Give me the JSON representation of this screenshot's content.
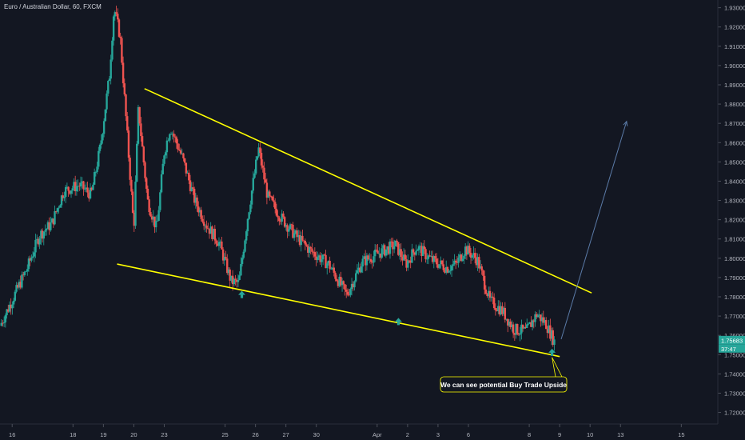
{
  "header": {
    "title": "Euro / Australian Dollar, 60, FXCM"
  },
  "colors": {
    "background": "#131722",
    "up": "#26a69a",
    "down": "#ef5350",
    "trendline": "#ffff00",
    "arrow_up": "#26a69a",
    "projection": "#5b7ba8",
    "price_badge": "#26a69a",
    "axis_text": "#b2b5be"
  },
  "chart_data": {
    "type": "candlestick",
    "title": "Euro / Australian Dollar, 60, FXCM",
    "x_ticks": [
      {
        "label": "16",
        "day": 0
      },
      {
        "label": "18",
        "day": 2
      },
      {
        "label": "19",
        "day": 3
      },
      {
        "label": "20",
        "day": 4
      },
      {
        "label": "23",
        "day": 5
      },
      {
        "label": "25",
        "day": 7
      },
      {
        "label": "26",
        "day": 8
      },
      {
        "label": "27",
        "day": 9
      },
      {
        "label": "30",
        "day": 10
      },
      {
        "label": "Apr",
        "day": 12
      },
      {
        "label": "2",
        "day": 13
      },
      {
        "label": "3",
        "day": 14
      },
      {
        "label": "6",
        "day": 15
      },
      {
        "label": "8",
        "day": 17
      },
      {
        "label": "9",
        "day": 18
      },
      {
        "label": "10",
        "day": 19
      },
      {
        "label": "13",
        "day": 20
      },
      {
        "label": "15",
        "day": 22
      }
    ],
    "y_ticks": [
      1.72,
      1.73,
      1.74,
      1.75,
      1.76,
      1.77,
      1.78,
      1.79,
      1.8,
      1.81,
      1.82,
      1.83,
      1.84,
      1.85,
      1.86,
      1.87,
      1.88,
      1.89,
      1.9,
      1.91,
      1.92,
      1.93
    ],
    "y_tick_labels": [
      "1.72000",
      "1.73000",
      "1.74000",
      "1.75000",
      "1.76000",
      "1.77000",
      "1.78000",
      "1.79000",
      "1.80000",
      "1.81000",
      "1.82000",
      "1.83000",
      "1.84000",
      "1.85000",
      "1.86000",
      "1.87000",
      "1.88000",
      "1.89000",
      "1.90000",
      "1.91000",
      "1.92000",
      "1.93000"
    ],
    "ylim": [
      1.714,
      1.934
    ],
    "xlim_days": [
      -0.4,
      23.2
    ],
    "price_path": [
      {
        "day": -0.4,
        "price": 1.765
      },
      {
        "day": 0.2,
        "price": 1.785
      },
      {
        "day": 0.5,
        "price": 1.795
      },
      {
        "day": 0.9,
        "price": 1.812
      },
      {
        "day": 1.3,
        "price": 1.818
      },
      {
        "day": 1.7,
        "price": 1.835
      },
      {
        "day": 2.2,
        "price": 1.838
      },
      {
        "day": 2.6,
        "price": 1.833
      },
      {
        "day": 2.9,
        "price": 1.858
      },
      {
        "day": 3.2,
        "price": 1.895
      },
      {
        "day": 3.35,
        "price": 1.93
      },
      {
        "day": 3.55,
        "price": 1.915
      },
      {
        "day": 3.8,
        "price": 1.86
      },
      {
        "day": 4.0,
        "price": 1.815
      },
      {
        "day": 4.15,
        "price": 1.878
      },
      {
        "day": 4.45,
        "price": 1.83
      },
      {
        "day": 4.75,
        "price": 1.815
      },
      {
        "day": 5.0,
        "price": 1.855
      },
      {
        "day": 5.2,
        "price": 1.868
      },
      {
        "day": 5.6,
        "price": 1.852
      },
      {
        "day": 6.0,
        "price": 1.83
      },
      {
        "day": 6.4,
        "price": 1.817
      },
      {
        "day": 6.8,
        "price": 1.808
      },
      {
        "day": 7.2,
        "price": 1.788
      },
      {
        "day": 7.45,
        "price": 1.787
      },
      {
        "day": 7.75,
        "price": 1.822
      },
      {
        "day": 8.1,
        "price": 1.857
      },
      {
        "day": 8.4,
        "price": 1.832
      },
      {
        "day": 8.8,
        "price": 1.822
      },
      {
        "day": 9.3,
        "price": 1.812
      },
      {
        "day": 9.8,
        "price": 1.804
      },
      {
        "day": 10.4,
        "price": 1.797
      },
      {
        "day": 11.0,
        "price": 1.781
      },
      {
        "day": 11.5,
        "price": 1.798
      },
      {
        "day": 12.1,
        "price": 1.803
      },
      {
        "day": 12.6,
        "price": 1.807
      },
      {
        "day": 12.95,
        "price": 1.797
      },
      {
        "day": 13.3,
        "price": 1.806
      },
      {
        "day": 13.8,
        "price": 1.799
      },
      {
        "day": 14.3,
        "price": 1.795
      },
      {
        "day": 14.6,
        "price": 1.797
      },
      {
        "day": 14.9,
        "price": 1.805
      },
      {
        "day": 15.3,
        "price": 1.799
      },
      {
        "day": 15.7,
        "price": 1.778
      },
      {
        "day": 16.1,
        "price": 1.773
      },
      {
        "day": 16.5,
        "price": 1.763
      },
      {
        "day": 16.9,
        "price": 1.762
      },
      {
        "day": 17.25,
        "price": 1.771
      },
      {
        "day": 17.55,
        "price": 1.766
      },
      {
        "day": 17.85,
        "price": 1.756
      }
    ],
    "last_price": "1.75683",
    "countdown": "37:47",
    "trendlines": [
      {
        "name": "upper-resistance",
        "from": {
          "day": 4.35,
          "price": 1.888
        },
        "to": {
          "day": 19.05,
          "price": 1.782
        }
      },
      {
        "name": "lower-support",
        "from": {
          "day": 3.45,
          "price": 1.797
        },
        "to": {
          "day": 18.0,
          "price": 1.749
        }
      }
    ],
    "touch_arrows": [
      {
        "day": 7.55,
        "price": 1.781
      },
      {
        "day": 12.7,
        "price": 1.767
      },
      {
        "day": 17.75,
        "price": 1.751
      }
    ],
    "projection": {
      "from": {
        "day": 18.05,
        "price": 1.758
      },
      "to": {
        "day": 20.2,
        "price": 1.871
      }
    },
    "annotation": {
      "text": "We can see potential Buy Trade Upside",
      "anchor": {
        "day": 17.75,
        "price": 1.749
      }
    }
  }
}
